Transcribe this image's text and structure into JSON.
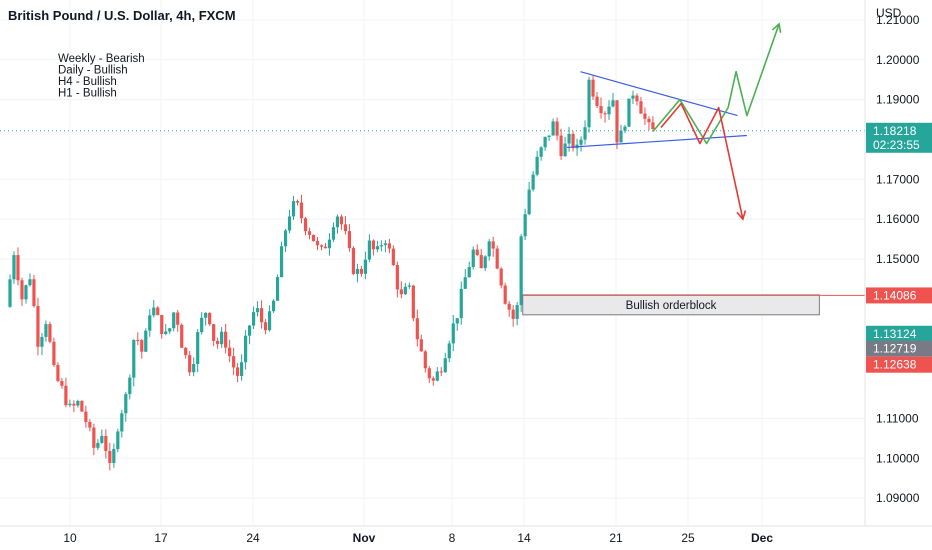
{
  "header": {
    "title": "British Pound / U.S. Dollar, 4h, FXCM",
    "currency": "USD"
  },
  "notes": [
    "Weekly - Bearish",
    "Daily - Bullish",
    "H4 - Bullish",
    "H1 - Bullish"
  ],
  "orderblock_label": "Bullish orderblock",
  "colors": {
    "bull": "#26a69a",
    "bear": "#ef5350",
    "line": "#3b5ee6",
    "up": "#4caf50",
    "down": "#e53935",
    "current": "#26a69a",
    "grey": "#787b86"
  },
  "chart_data": {
    "type": "candlestick",
    "title": "British Pound / U.S. Dollar, 4h, FXCM",
    "ylabel": "USD",
    "ylim": [
      1.083,
      1.215
    ],
    "yticks": [
      "1.21000",
      "1.20000",
      "1.19000",
      "1.17000",
      "1.16000",
      "1.15000",
      "1.11000",
      "1.10000",
      "1.09000"
    ],
    "xticks": [
      "10",
      "17",
      "24",
      "Nov",
      "8",
      "14",
      "21",
      "25",
      "Dec"
    ],
    "price_labels": [
      {
        "value": "1.18218",
        "sub": "02:23:55",
        "color": "#26a69a"
      },
      {
        "value": "1.14086",
        "color": "#ef5350"
      },
      {
        "value": "1.13124",
        "color": "#26a69a"
      },
      {
        "value": "1.12719",
        "color": "#787b86"
      },
      {
        "value": "1.12638",
        "color": "#ef5350"
      }
    ],
    "price_path": [
      [
        0,
        1.138
      ],
      [
        6,
        1.152
      ],
      [
        12,
        1.14
      ],
      [
        18,
        1.146
      ],
      [
        24,
        1.129
      ],
      [
        30,
        1.135
      ],
      [
        36,
        1.121
      ],
      [
        42,
        1.117
      ],
      [
        48,
        1.112
      ],
      [
        54,
        1.114
      ],
      [
        60,
        1.109
      ],
      [
        66,
        1.102
      ],
      [
        72,
        1.107
      ],
      [
        78,
        1.096
      ],
      [
        84,
        1.11
      ],
      [
        90,
        1.116
      ],
      [
        96,
        1.132
      ],
      [
        102,
        1.126
      ],
      [
        108,
        1.139
      ],
      [
        114,
        1.134
      ],
      [
        120,
        1.13
      ],
      [
        126,
        1.138
      ],
      [
        132,
        1.127
      ],
      [
        138,
        1.122
      ],
      [
        144,
        1.133
      ],
      [
        150,
        1.138
      ],
      [
        156,
        1.128
      ],
      [
        162,
        1.131
      ],
      [
        168,
        1.124
      ],
      [
        174,
        1.12
      ],
      [
        180,
        1.132
      ],
      [
        186,
        1.138
      ],
      [
        192,
        1.133
      ],
      [
        198,
        1.136
      ],
      [
        204,
        1.149
      ],
      [
        210,
        1.161
      ],
      [
        216,
        1.164
      ],
      [
        222,
        1.159
      ],
      [
        228,
        1.156
      ],
      [
        234,
        1.151
      ],
      [
        240,
        1.155
      ],
      [
        246,
        1.162
      ],
      [
        252,
        1.157
      ],
      [
        258,
        1.148
      ],
      [
        264,
        1.146
      ],
      [
        270,
        1.154
      ],
      [
        276,
        1.151
      ],
      [
        282,
        1.156
      ],
      [
        288,
        1.149
      ],
      [
        294,
        1.14
      ],
      [
        300,
        1.143
      ],
      [
        306,
        1.131
      ],
      [
        312,
        1.123
      ],
      [
        318,
        1.119
      ],
      [
        324,
        1.123
      ],
      [
        330,
        1.13
      ],
      [
        336,
        1.136
      ],
      [
        342,
        1.145
      ],
      [
        348,
        1.152
      ],
      [
        354,
        1.147
      ],
      [
        360,
        1.156
      ],
      [
        366,
        1.149
      ],
      [
        372,
        1.14
      ],
      [
        378,
        1.135
      ],
      [
        381,
        1.138
      ],
      [
        384,
        1.157
      ],
      [
        390,
        1.168
      ],
      [
        396,
        1.175
      ],
      [
        402,
        1.18
      ],
      [
        408,
        1.184
      ],
      [
        414,
        1.177
      ],
      [
        420,
        1.18
      ],
      [
        426,
        1.177
      ],
      [
        432,
        1.185
      ],
      [
        434,
        1.195
      ],
      [
        440,
        1.19
      ],
      [
        446,
        1.187
      ],
      [
        452,
        1.191
      ],
      [
        456,
        1.178
      ],
      [
        462,
        1.186
      ],
      [
        468,
        1.193
      ],
      [
        474,
        1.187
      ],
      [
        478,
        1.183
      ],
      [
        482,
        1.182
      ]
    ],
    "triangle": {
      "upper": [
        [
          428,
          1.197
        ],
        [
          545,
          1.186
        ]
      ],
      "lower": [
        [
          418,
          1.178
        ],
        [
          552,
          1.181
        ]
      ]
    },
    "projection_up": [
      [
        482,
        1.182
      ],
      [
        502,
        1.19
      ],
      [
        522,
        1.179
      ],
      [
        538,
        1.188
      ],
      [
        544,
        1.197
      ],
      [
        552,
        1.186
      ],
      [
        576,
        1.209
      ]
    ],
    "projection_down": [
      [
        488,
        1.183
      ],
      [
        503,
        1.189
      ],
      [
        517,
        1.179
      ],
      [
        531,
        1.188
      ],
      [
        549,
        1.16
      ]
    ],
    "orderblock": {
      "start": 385,
      "end": 606,
      "top": 1.141,
      "bottom": 1.136,
      "line_level": 1.14086
    },
    "current_price": 1.18218
  }
}
